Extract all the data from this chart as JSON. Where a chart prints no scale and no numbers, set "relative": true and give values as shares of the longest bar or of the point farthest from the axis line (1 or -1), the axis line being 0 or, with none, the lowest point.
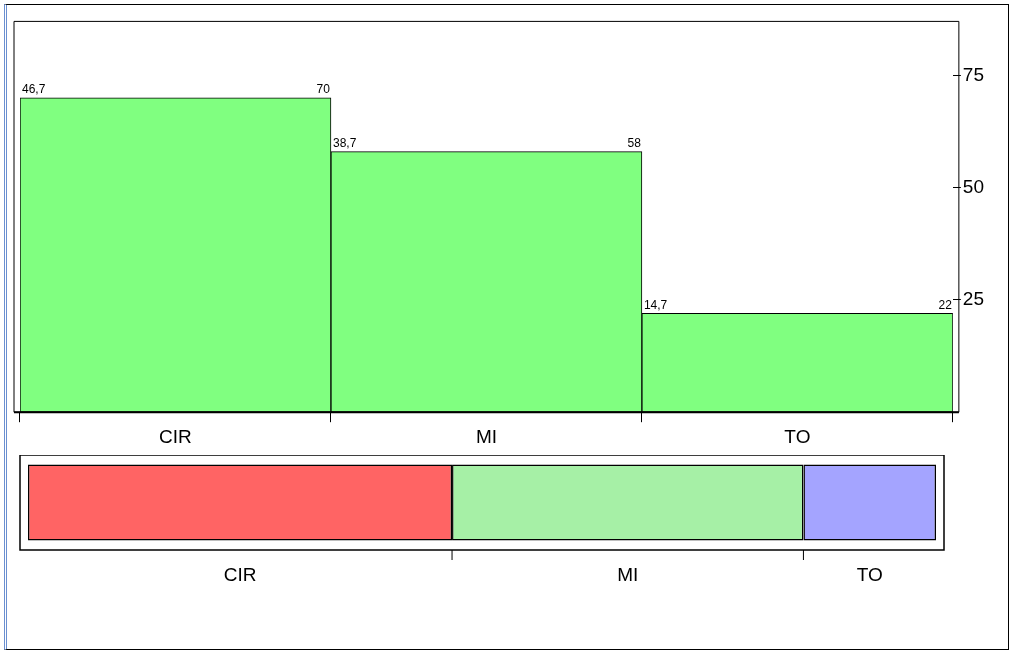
{
  "chart_data": [
    {
      "type": "bar",
      "categories": [
        "CIR",
        "MI",
        "TO"
      ],
      "values": [
        70,
        58,
        22
      ],
      "color": "#80ff80",
      "ylim": [
        0,
        87
      ],
      "yticks": [
        25,
        50,
        75
      ],
      "value_labels": [
        "70",
        "58",
        "22"
      ],
      "annotations": [
        "46,7",
        "38,7",
        "14,7"
      ]
    },
    {
      "type": "bar",
      "orientation": "horizontal",
      "stacked": true,
      "relative": true,
      "categories": [
        null
      ],
      "series": [
        {
          "name": "CIR",
          "color": "#ff6464",
          "values": [
            0.467
          ]
        },
        {
          "name": "MI",
          "color": "#a6f0a6",
          "values": [
            0.387
          ]
        },
        {
          "name": "TO",
          "color": "#a4a4ff",
          "values": [
            0.146
          ]
        }
      ]
    }
  ]
}
